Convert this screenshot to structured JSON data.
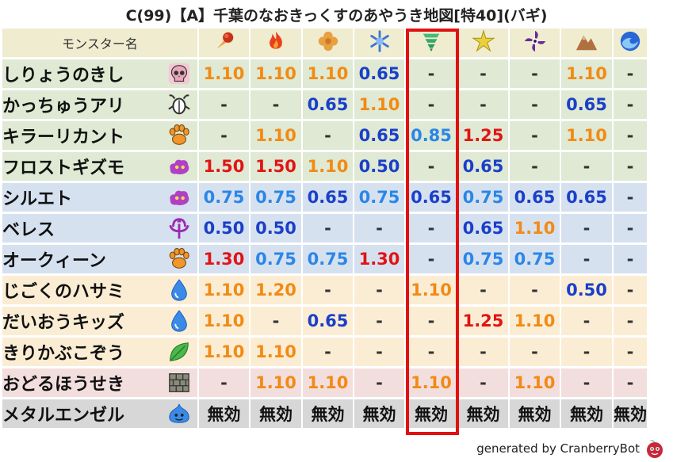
{
  "title": "C(99)【A】千葉のなおきっくすのあやうき地図[特40](バギ)",
  "header": {
    "name_label": "モンスター名",
    "elements": [
      {
        "icon": "meteor-icon",
        "color": "#d83a1a"
      },
      {
        "icon": "fire-icon",
        "color": "#e8401c"
      },
      {
        "icon": "earth-clover-icon",
        "color": "#e59a3a"
      },
      {
        "icon": "ice-crystal-icon",
        "color": "#5a8ee8"
      },
      {
        "icon": "wind-tornado-icon",
        "color": "#3aa86a"
      },
      {
        "icon": "lightning-star-icon",
        "color": "#d8c020"
      },
      {
        "icon": "dark-pinwheel-icon",
        "color": "#6a2a9a"
      },
      {
        "icon": "rock-mountain-icon",
        "color": "#b07040"
      },
      {
        "icon": "water-wave-icon",
        "color": "#2a66d8"
      }
    ]
  },
  "rows": [
    {
      "name": "しりょうのきし",
      "icon": "skull-icon",
      "bg": "#dfe9d3",
      "vals": [
        "1.10",
        "1.10",
        "1.10",
        "0.65",
        "-",
        "-",
        "-",
        "1.10",
        "-"
      ],
      "cls": [
        "o",
        "o",
        "o",
        "b",
        "d",
        "d",
        "d",
        "o",
        "d"
      ]
    },
    {
      "name": "かっちゅうアリ",
      "icon": "insect-icon",
      "bg": "#dfe9d3",
      "vals": [
        "-",
        "-",
        "0.65",
        "1.10",
        "-",
        "-",
        "-",
        "0.65",
        "-"
      ],
      "cls": [
        "d",
        "d",
        "b",
        "o",
        "d",
        "d",
        "d",
        "b",
        "d"
      ]
    },
    {
      "name": "キラーリカント",
      "icon": "beast-paw-icon",
      "bg": "#dfe9d3",
      "vals": [
        "-",
        "1.10",
        "-",
        "0.65",
        "0.85",
        "1.25",
        "-",
        "1.10",
        "-"
      ],
      "cls": [
        "d",
        "o",
        "d",
        "b",
        "l",
        "r",
        "d",
        "o",
        "d"
      ]
    },
    {
      "name": "フロストギズモ",
      "icon": "purple-cloud-icon",
      "bg": "#dfe9d3",
      "vals": [
        "1.50",
        "1.50",
        "1.10",
        "0.50",
        "-",
        "0.65",
        "-",
        "-",
        "-"
      ],
      "cls": [
        "r",
        "r",
        "o",
        "b",
        "d",
        "b",
        "d",
        "d",
        "d"
      ]
    },
    {
      "name": "シルエト",
      "icon": "purple-cloud-icon",
      "bg": "#d6e1f0",
      "vals": [
        "0.75",
        "0.75",
        "0.65",
        "0.75",
        "0.65",
        "0.75",
        "0.65",
        "0.65",
        "-"
      ],
      "cls": [
        "l",
        "l",
        "b",
        "l",
        "b",
        "l",
        "b",
        "b",
        "d"
      ]
    },
    {
      "name": "ベレス",
      "icon": "demon-trident-icon",
      "bg": "#d6e1f0",
      "vals": [
        "0.50",
        "0.50",
        "-",
        "-",
        "-",
        "0.65",
        "1.10",
        "-",
        "-"
      ],
      "cls": [
        "b",
        "b",
        "d",
        "d",
        "d",
        "b",
        "o",
        "d",
        "d"
      ]
    },
    {
      "name": "オークィーン",
      "icon": "beast-paw-icon",
      "bg": "#d6e1f0",
      "vals": [
        "1.30",
        "0.75",
        "0.75",
        "1.30",
        "-",
        "0.75",
        "0.75",
        "-",
        "-"
      ],
      "cls": [
        "r",
        "l",
        "l",
        "r",
        "d",
        "l",
        "l",
        "d",
        "d"
      ]
    },
    {
      "name": "じごくのハサミ",
      "icon": "water-drop-icon",
      "bg": "#fbedd3",
      "vals": [
        "1.10",
        "1.20",
        "-",
        "-",
        "1.10",
        "-",
        "-",
        "0.50",
        "-"
      ],
      "cls": [
        "o",
        "o",
        "d",
        "d",
        "o",
        "d",
        "d",
        "b",
        "d"
      ]
    },
    {
      "name": "だいおうキッズ",
      "icon": "water-drop-icon",
      "bg": "#fbedd3",
      "vals": [
        "1.10",
        "-",
        "0.65",
        "-",
        "-",
        "1.25",
        "1.10",
        "-",
        "-"
      ],
      "cls": [
        "o",
        "d",
        "b",
        "d",
        "d",
        "r",
        "o",
        "d",
        "d"
      ]
    },
    {
      "name": "きりかぶこぞう",
      "icon": "leaf-icon",
      "bg": "#fbedd3",
      "vals": [
        "1.10",
        "1.10",
        "-",
        "-",
        "-",
        "-",
        "-",
        "-",
        "-"
      ],
      "cls": [
        "o",
        "o",
        "d",
        "d",
        "d",
        "d",
        "d",
        "d",
        "d"
      ]
    },
    {
      "name": "おどるほうせき",
      "icon": "brick-icon",
      "bg": "#f3dede",
      "vals": [
        "-",
        "1.10",
        "1.10",
        "-",
        "1.10",
        "-",
        "1.10",
        "-",
        "-"
      ],
      "cls": [
        "d",
        "o",
        "o",
        "d",
        "o",
        "d",
        "o",
        "d",
        "d"
      ]
    },
    {
      "name": "メタルエンゼル",
      "icon": "slime-icon",
      "bg": "#d7d7d7",
      "vals": [
        "無効",
        "無効",
        "無効",
        "無効",
        "無効",
        "無効",
        "無効",
        "無効",
        "無効"
      ],
      "cls": [
        "k",
        "k",
        "k",
        "k",
        "k",
        "k",
        "k",
        "k",
        "k"
      ]
    }
  ],
  "highlight_column": 4,
  "footer": "generated by CranberryBot",
  "colors": {
    "orange": "#f28a14",
    "blue": "#1a3fc9",
    "red": "#e11414",
    "light_blue": "#2a86e8",
    "highlight": "#e11111"
  }
}
